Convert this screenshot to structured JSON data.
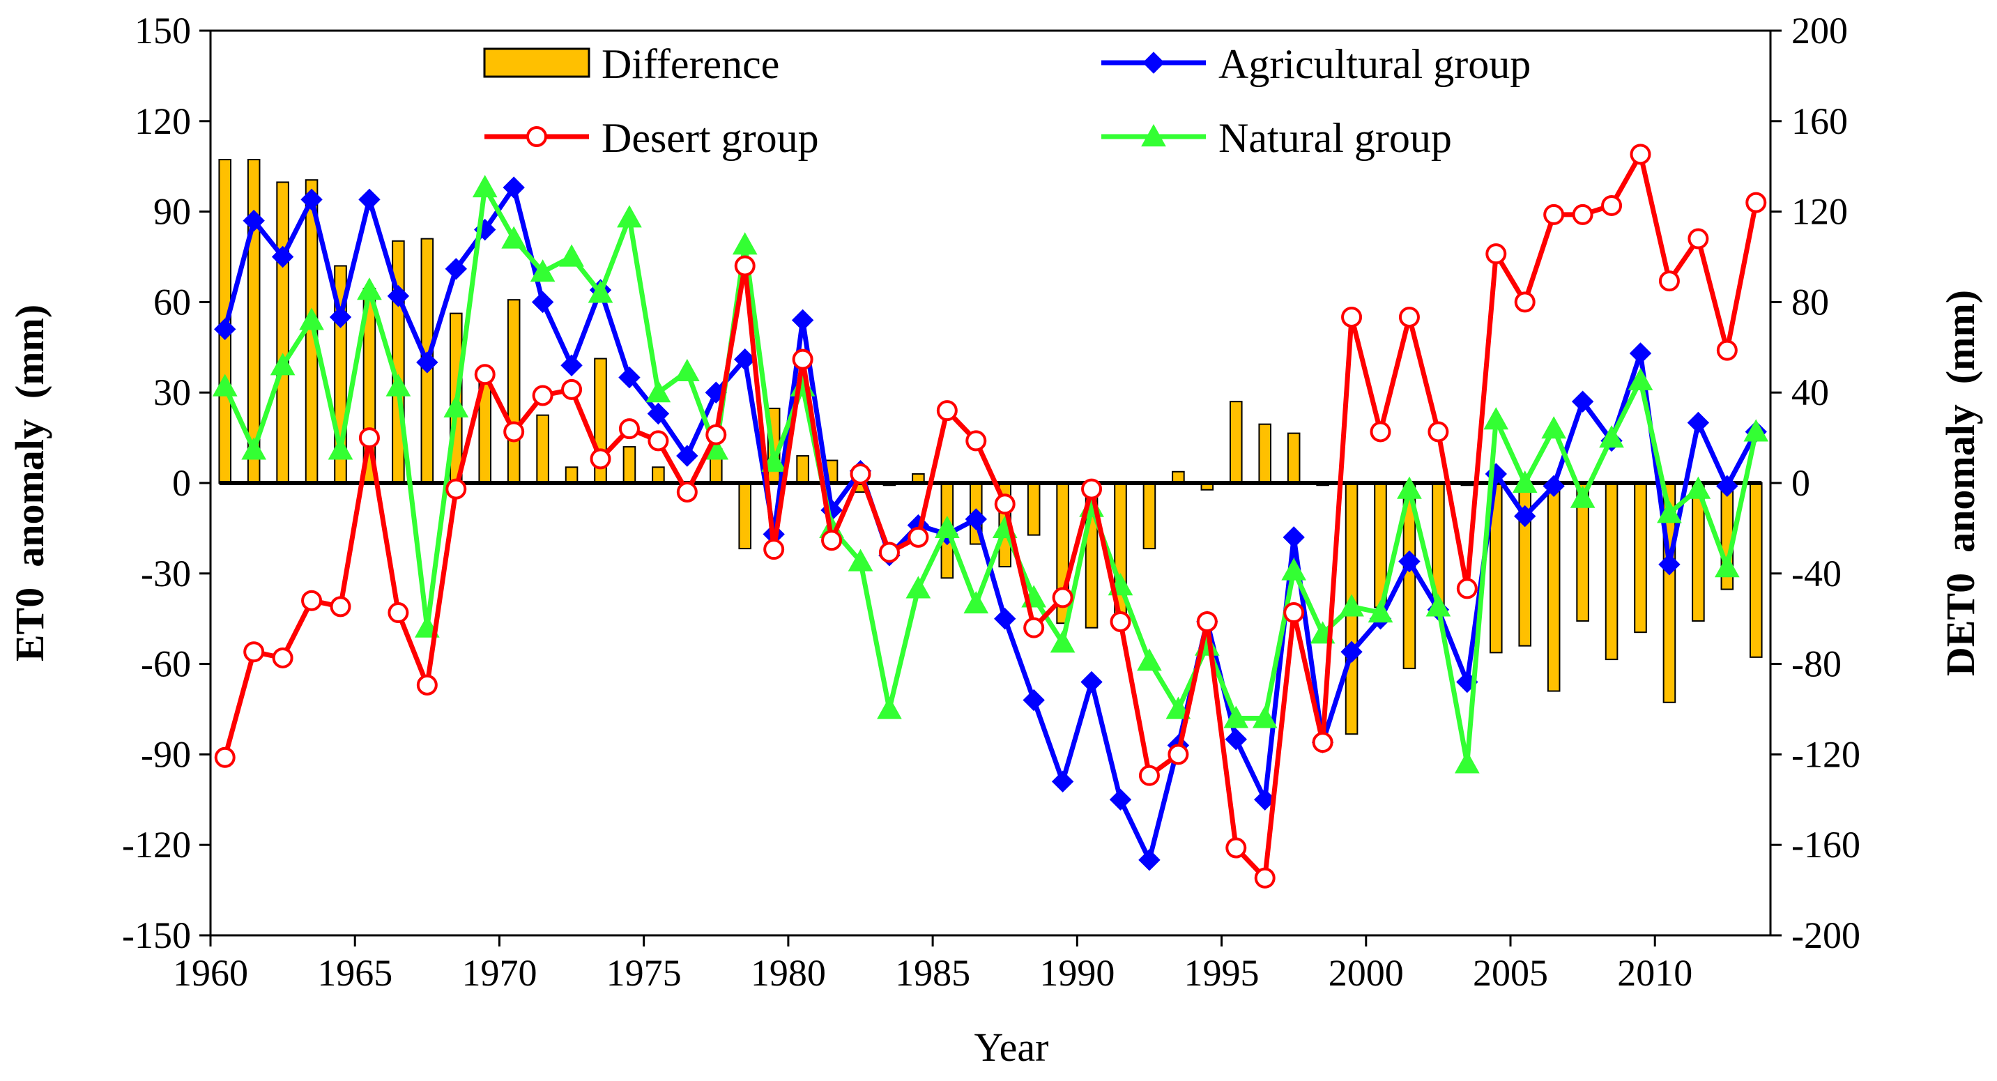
{
  "chart_data": {
    "type": "bar+line",
    "x": [
      1960,
      1961,
      1962,
      1963,
      1964,
      1965,
      1966,
      1967,
      1968,
      1969,
      1970,
      1971,
      1972,
      1973,
      1974,
      1975,
      1976,
      1977,
      1978,
      1979,
      1980,
      1981,
      1982,
      1983,
      1984,
      1985,
      1986,
      1987,
      1988,
      1989,
      1990,
      1991,
      1992,
      1993,
      1994,
      1995,
      1996,
      1997,
      1998,
      1999,
      2000,
      2001,
      2002,
      2003,
      2004,
      2005,
      2006,
      2007,
      2008,
      2009,
      2010,
      2011,
      2012,
      2013
    ],
    "xlabel": "Year",
    "ylabel_left": "ET0  anomaly  (mm)",
    "ylabel_right": "DET0  anomaly  (mm)",
    "ylim_left": [
      -150,
      150
    ],
    "ylim_right": [
      -200,
      200
    ],
    "x_ticks": [
      1960,
      1965,
      1970,
      1975,
      1980,
      1985,
      1990,
      1995,
      2000,
      2005,
      2010
    ],
    "y_ticks_left": [
      -150,
      -120,
      -90,
      -60,
      -30,
      0,
      30,
      60,
      90,
      120,
      150
    ],
    "y_ticks_right": [
      -200,
      -160,
      -120,
      -80,
      -40,
      0,
      40,
      80,
      120,
      160,
      200
    ],
    "legend_placement": "top, two columns",
    "grid": false,
    "series": [
      {
        "name": "Difference",
        "kind": "bar",
        "axis": "right",
        "color": "#FFC000",
        "values": [
          143,
          143,
          133,
          134,
          96,
          86,
          107,
          108,
          75,
          49,
          81,
          30,
          7,
          55,
          16,
          7,
          -3,
          15,
          -29,
          33,
          12,
          10,
          -4,
          -1,
          4,
          -42,
          -27,
          -37,
          -23,
          -62,
          -64,
          -60,
          -29,
          5,
          -3,
          36,
          26,
          22,
          -1,
          -111,
          -55,
          -82,
          -54,
          -1,
          -75,
          -72,
          -92,
          -61,
          -78,
          -66,
          -97,
          -61,
          -47,
          -77
        ]
      },
      {
        "name": "Agricultural group",
        "kind": "line",
        "marker": "diamond",
        "axis": "left",
        "color": "#0000FF",
        "values": [
          51,
          87,
          75,
          94,
          55,
          94,
          62,
          40,
          71,
          84,
          98,
          60,
          39,
          64,
          35,
          23,
          9,
          30,
          41,
          -17,
          54,
          -9,
          4,
          -24,
          -14,
          -17,
          -12,
          -45,
          -72,
          -99,
          -66,
          -105,
          -125,
          -87,
          -46,
          -85,
          -105,
          -18,
          -86,
          -56,
          -45,
          -26,
          -42,
          -66,
          3,
          -11,
          -1,
          27,
          14,
          43,
          -27,
          20,
          -1,
          17
        ]
      },
      {
        "name": "Desert group",
        "kind": "line",
        "marker": "circle-open",
        "axis": "left",
        "color": "#FF0000",
        "values": [
          -91,
          -56,
          -58,
          -39,
          -41,
          15,
          -43,
          -67,
          -2,
          36,
          17,
          29,
          31,
          8,
          18,
          14,
          -3,
          16,
          72,
          -22,
          41,
          -19,
          3,
          -23,
          -18,
          24,
          14,
          -7,
          -48,
          -38,
          -2,
          -46,
          -97,
          -90,
          -46,
          -121,
          -131,
          -43,
          -86,
          55,
          17,
          55,
          17,
          -35,
          76,
          60,
          89,
          89,
          92,
          109,
          67,
          81,
          44,
          93
        ]
      },
      {
        "name": "Natural group",
        "kind": "line",
        "marker": "triangle",
        "axis": "left",
        "color": "#33FF33",
        "values": [
          32,
          11,
          39,
          54,
          11,
          64,
          32,
          -48,
          25,
          98,
          81,
          70,
          75,
          63,
          88,
          30,
          37,
          11,
          79,
          7,
          32,
          -15,
          -26,
          -75,
          -35,
          -15,
          -40,
          -15,
          -38,
          -53,
          -8,
          -34,
          -59,
          -75,
          -54,
          -78,
          -78,
          -29,
          -50,
          -41,
          -43,
          -2,
          -41,
          -93,
          21,
          0,
          18,
          -5,
          15,
          34,
          -10,
          -2,
          -28,
          17
        ]
      }
    ]
  }
}
